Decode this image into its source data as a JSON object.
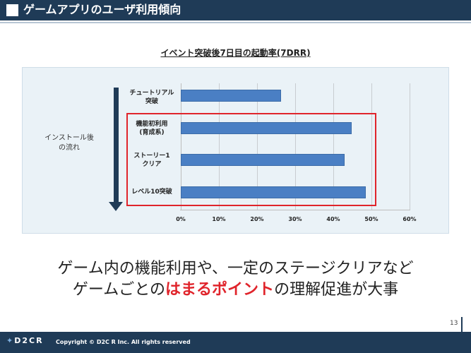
{
  "header": {
    "title": "ゲームアプリのユーザ利用傾向"
  },
  "chart_data": {
    "type": "bar",
    "orientation": "horizontal",
    "title": "イベント突破後7日目の起動率(7DRR)",
    "side_label_lines": [
      "インストール後",
      "の流れ"
    ],
    "categories": [
      [
        "チュートリアル",
        "突破"
      ],
      [
        "機能初利用",
        "(育成系)"
      ],
      [
        "ストーリー1",
        "クリア"
      ],
      [
        "レベル10突破"
      ]
    ],
    "values": [
      0.263,
      0.449,
      0.43,
      0.485
    ],
    "xlim": [
      0,
      0.6
    ],
    "x_ticks": [
      "0%",
      "10%",
      "20%",
      "30%",
      "40%",
      "50%",
      "60%"
    ],
    "grid": true,
    "bar_color": "#4a7fc4",
    "highlight_color": "#e0242b"
  },
  "message": {
    "line1": "ゲーム内の機能利用や、一定のステージクリアなど",
    "line2_before": "ゲームごとの",
    "line2_emphasis": "はまるポイント",
    "line2_after": "の理解促進が大事"
  },
  "footer": {
    "logo": "D2CR",
    "copyright": "Copyright © D2C R Inc. All rights reserved"
  },
  "page_number": "13"
}
